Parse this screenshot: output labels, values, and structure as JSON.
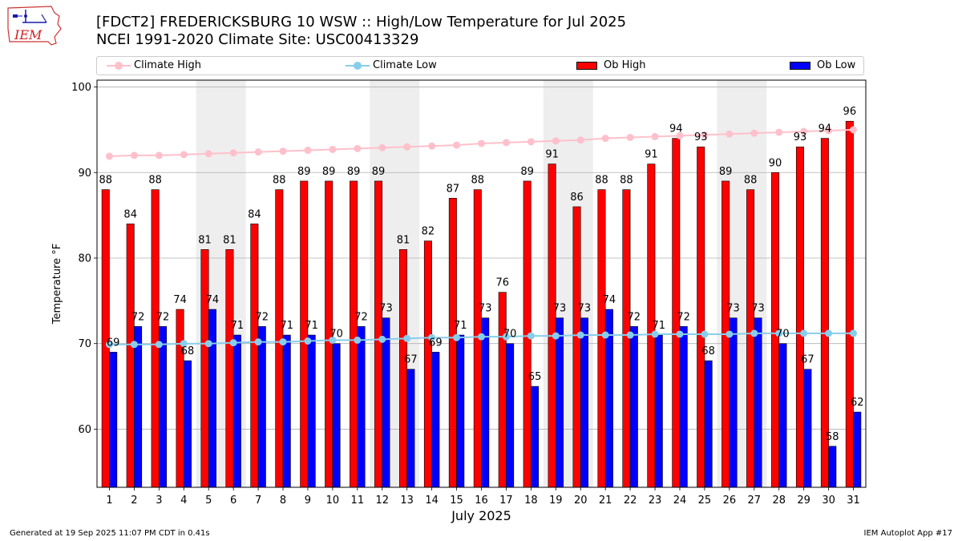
{
  "header": {
    "title_line1": "[FDCT2] FREDERICKSBURG 10 WSW :: High/Low Temperature for Jul 2025",
    "title_line2": "NCEI 1991-2020 Climate Site: USC00413329",
    "logo_text": "IEM"
  },
  "footer": {
    "generated": "Generated at 19 Sep 2025 11:07 PM CDT in 0.41s",
    "app": "IEM Autoplot App #17"
  },
  "colors": {
    "ob_high": "#ff0000",
    "ob_low": "#0000ff",
    "climate_high": "#ffc0cb",
    "climate_low": "#87ceeb",
    "weekend_shade": "#eeeeee",
    "grid": "#b0b0b0"
  },
  "chart_data": {
    "type": "bar",
    "title": "[FDCT2] FREDERICKSBURG 10 WSW :: High/Low Temperature for Jul 2025",
    "subtitle": "NCEI 1991-2020 Climate Site: USC00413329",
    "xlabel": "July 2025",
    "ylabel": "Temperature °F",
    "ylim": [
      53.2,
      100.8
    ],
    "yticks": [
      60,
      70,
      80,
      90,
      100
    ],
    "categories": [
      "1",
      "2",
      "3",
      "4",
      "5",
      "6",
      "7",
      "8",
      "9",
      "10",
      "11",
      "12",
      "13",
      "14",
      "15",
      "16",
      "17",
      "18",
      "19",
      "20",
      "21",
      "22",
      "23",
      "24",
      "25",
      "26",
      "27",
      "28",
      "29",
      "30",
      "31"
    ],
    "shaded_day_pairs": [
      [
        5,
        6
      ],
      [
        12,
        13
      ],
      [
        19,
        20
      ],
      [
        26,
        27
      ]
    ],
    "legend_position": "top",
    "legend": [
      "Climate High",
      "Climate Low",
      "Ob High",
      "Ob Low"
    ],
    "series": [
      {
        "name": "Ob High",
        "kind": "bar",
        "values": [
          88,
          84,
          88,
          74,
          81,
          81,
          84,
          88,
          89,
          89,
          89,
          89,
          81,
          82,
          87,
          88,
          76,
          89,
          91,
          86,
          88,
          88,
          91,
          94,
          93,
          89,
          88,
          90,
          93,
          94,
          96
        ]
      },
      {
        "name": "Ob Low",
        "kind": "bar",
        "values": [
          69,
          72,
          72,
          68,
          74,
          71,
          72,
          71,
          71,
          70,
          72,
          73,
          67,
          69,
          71,
          73,
          70,
          65,
          73,
          73,
          74,
          72,
          71,
          72,
          68,
          73,
          73,
          70,
          67,
          58,
          62
        ]
      },
      {
        "name": "Climate High",
        "kind": "line",
        "values": [
          91.9,
          92.0,
          92.0,
          92.1,
          92.2,
          92.3,
          92.4,
          92.5,
          92.6,
          92.7,
          92.8,
          92.9,
          93.0,
          93.1,
          93.2,
          93.4,
          93.5,
          93.6,
          93.7,
          93.8,
          94.0,
          94.1,
          94.2,
          94.3,
          94.4,
          94.5,
          94.6,
          94.7,
          94.8,
          94.9,
          95.0
        ]
      },
      {
        "name": "Climate Low",
        "kind": "line",
        "values": [
          69.9,
          69.9,
          69.9,
          70.0,
          70.0,
          70.1,
          70.2,
          70.2,
          70.3,
          70.4,
          70.4,
          70.5,
          70.6,
          70.7,
          70.7,
          70.8,
          70.8,
          70.9,
          70.9,
          71.0,
          71.0,
          71.0,
          71.1,
          71.1,
          71.1,
          71.1,
          71.2,
          71.2,
          71.2,
          71.2,
          71.2
        ]
      }
    ]
  }
}
